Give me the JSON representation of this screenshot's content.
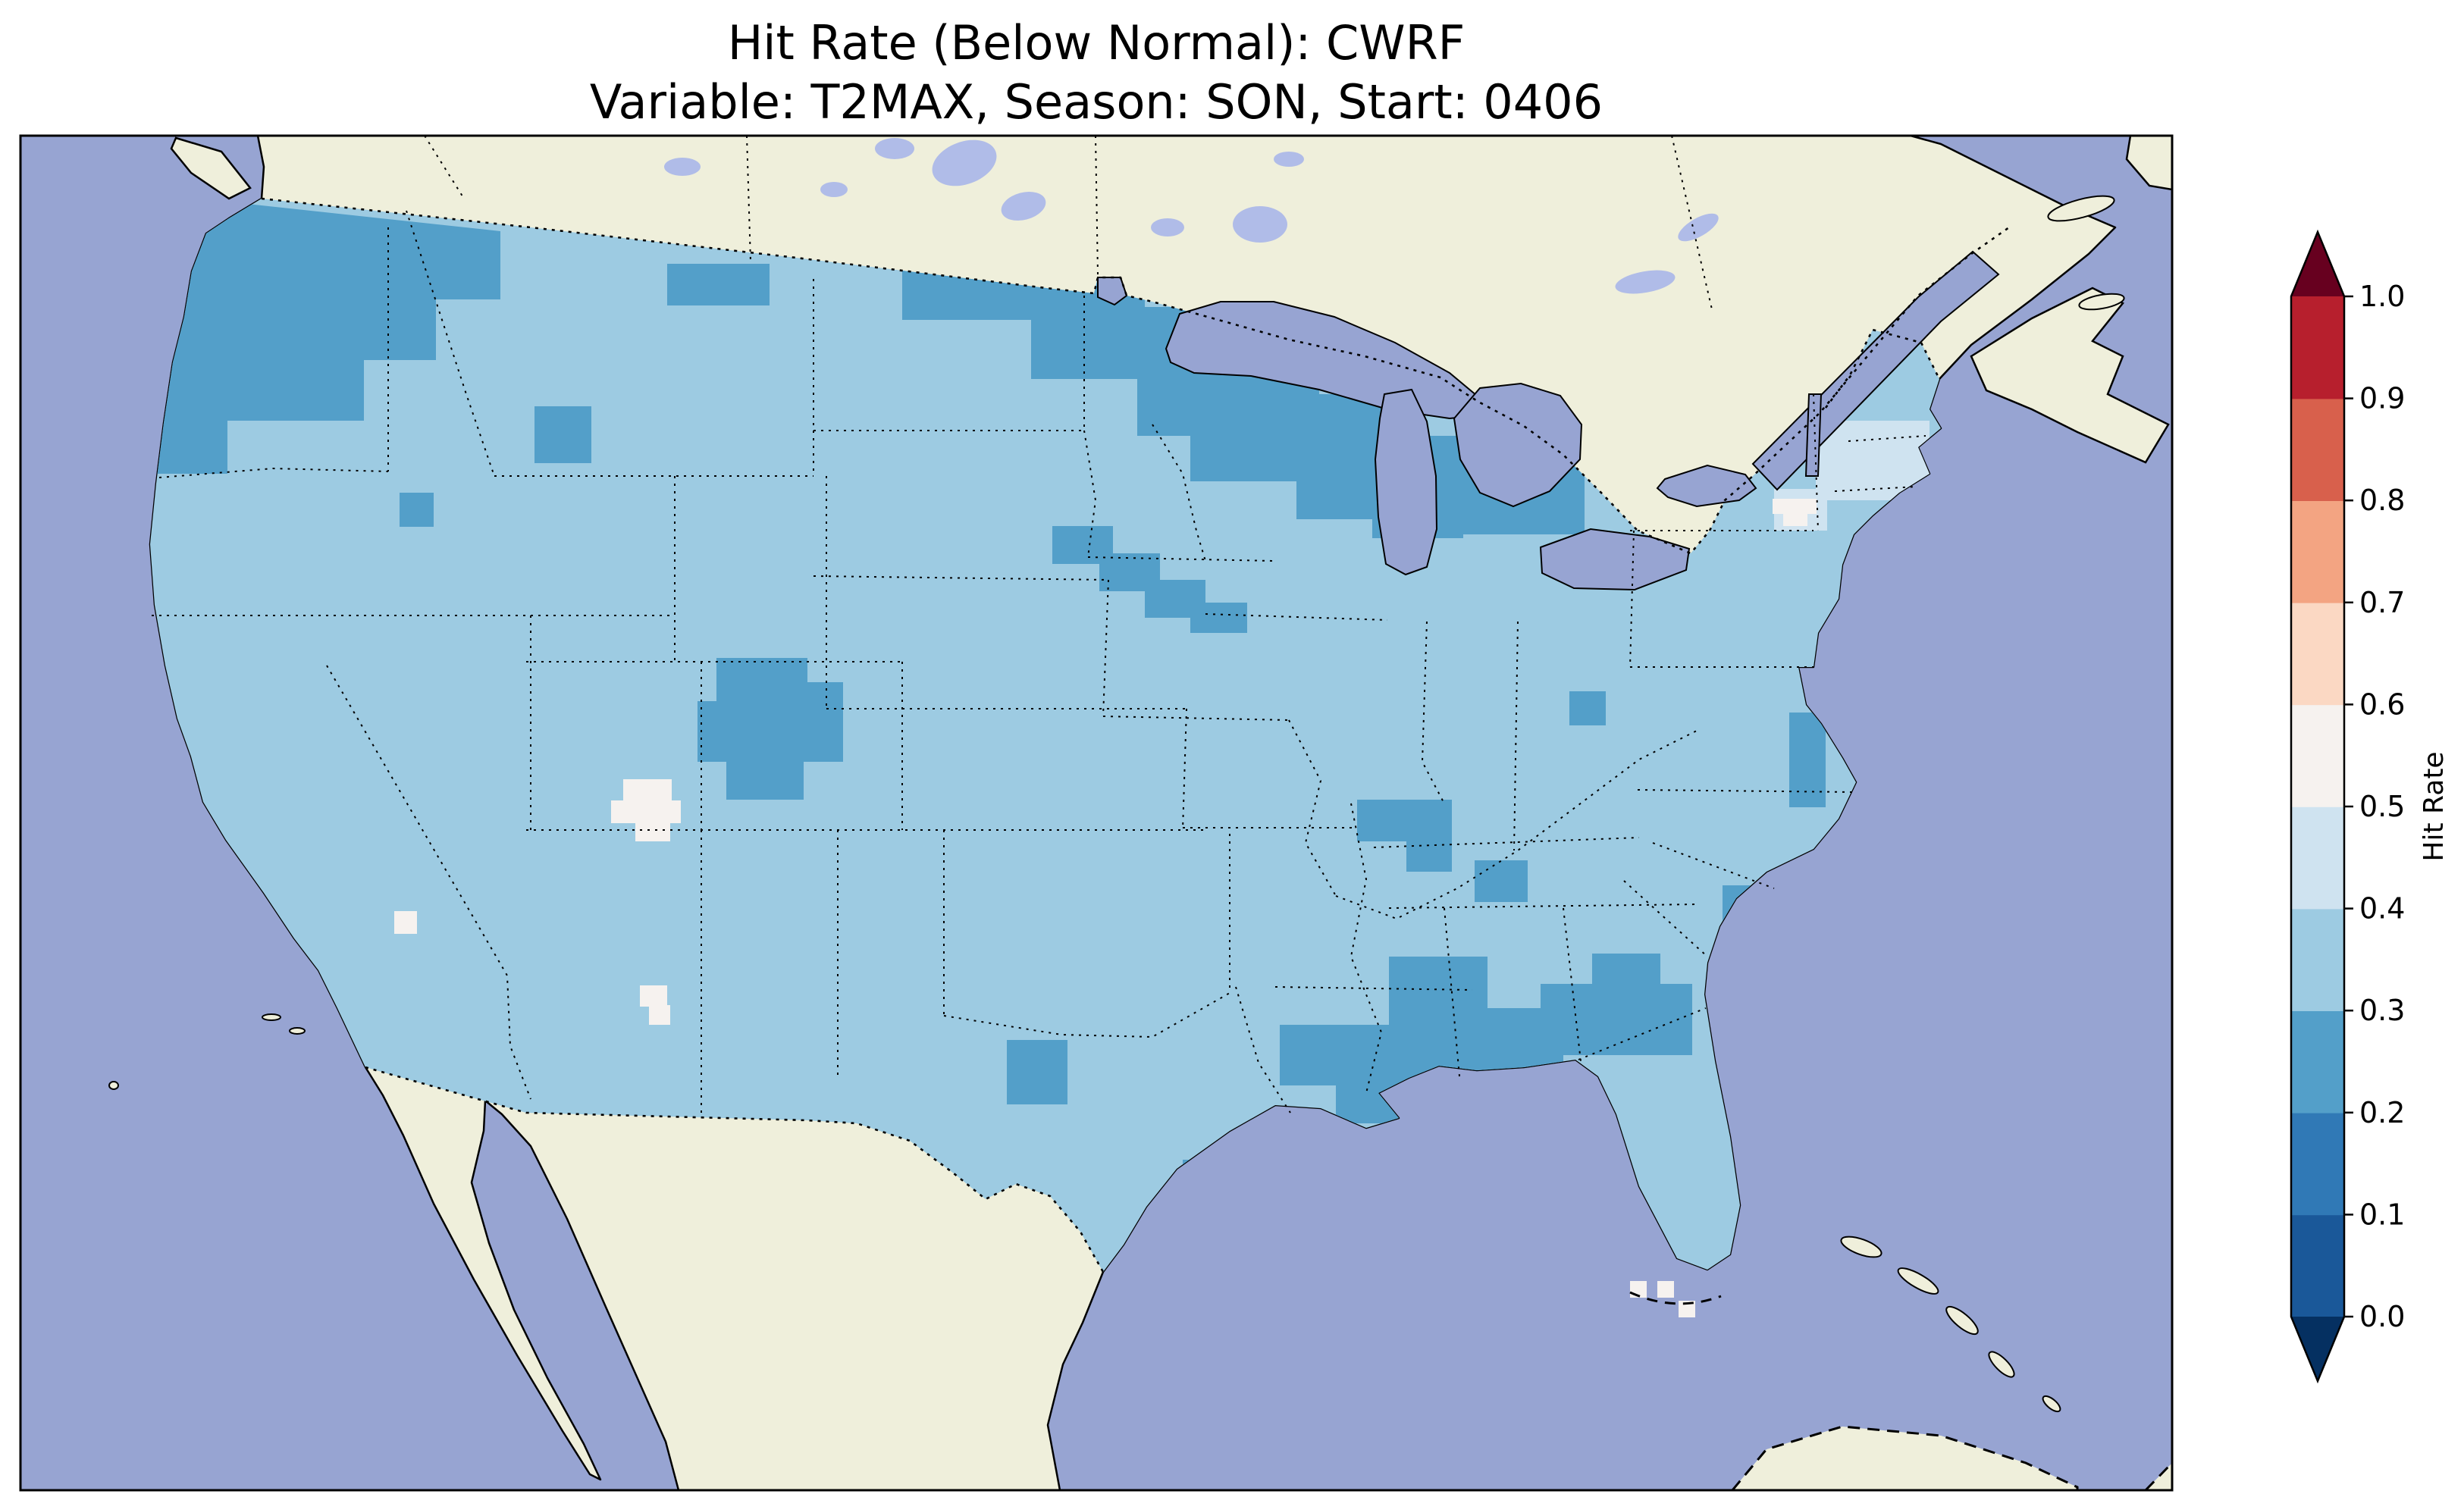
{
  "figure": {
    "title_line1": "Hit Rate (Below Normal): CWRF",
    "title_line2": "Variable: T2MAX, Season: SON, Start: 0406"
  },
  "colorbar": {
    "label": "Hit Rate",
    "ticks": [
      "0.0",
      "0.1",
      "0.2",
      "0.3",
      "0.4",
      "0.5",
      "0.6",
      "0.7",
      "0.8",
      "0.9",
      "1.0"
    ],
    "segments_bottom_to_top": [
      "#1a5899",
      "#3079b6",
      "#539fc9",
      "#9dcbe2",
      "#cfe3f0",
      "#f6f2ef",
      "#fbd8c3",
      "#f3a482",
      "#d8604c",
      "#b71f2d"
    ],
    "under_arrow_color": "#053061",
    "over_arrow_color": "#67001f",
    "outline_color": "#000000"
  },
  "map_colors": {
    "ocean": "#97a4d2",
    "land": "#efefdb",
    "lake": "#97a4d2",
    "lake_light": "#b0bce8",
    "cell_base": "#9dcbe2",
    "cell_dark": "#539fc9",
    "cell_light": "#cfe3f0",
    "cell_white": "#f6f2ef",
    "coast": "#000000",
    "border": "#000000"
  },
  "chart_data": {
    "type": "heatmap",
    "title": "Hit Rate (Below Normal): CWRF",
    "subtitle": "Variable: T2MAX, Season: SON, Start: 0406",
    "model": "CWRF",
    "metric": "Hit Rate (Below Normal)",
    "variable": "T2MAX",
    "season": "SON",
    "start": "0406",
    "region": "Contiguous United States (gridded map, cartopy-style; Canada/Mexico masked as land, oceans and Great Lakes unfilled)",
    "colorbar_label": "Hit Rate",
    "value_range": [
      0.0,
      1.0
    ],
    "colorbar_ticks": [
      0.0,
      0.1,
      0.2,
      0.3,
      0.4,
      0.5,
      0.6,
      0.7,
      0.8,
      0.9,
      1.0
    ],
    "bin_size": 0.1,
    "palette": "RdBu_r discrete (blue = low, red = high), 10 bins plus pointed under/over arrows on the colorbar",
    "data_bins": {
      "0.0-0.1": "#1a5899",
      "0.1-0.2": "#3079b6",
      "0.2-0.3": "#539fc9",
      "0.3-0.4": "#9dcbe2",
      "0.4-0.5": "#cfe3f0",
      "0.5-0.6": "#f6f2ef",
      "0.6-0.7": "#fbd8c3",
      "0.7-0.8": "#f3a482",
      "0.8-0.9": "#d8604c",
      "0.9-1.0": "#b71f2d"
    },
    "observed_values_summary": "All grid cells over CONUS fall between 0.2 and 0.6; no warm (red) values appear anywhere on the map. The dominant field value is 0.3-0.4.",
    "regions": [
      {
        "area": "Most of CONUS (base field)",
        "hit_rate": "0.3-0.4"
      },
      {
        "area": "Pacific Northwest: Washington, N Oregon, N Idaho",
        "hit_rate": "0.2-0.3"
      },
      {
        "area": "Northern border band: N Montana, N North Dakota, N Minnesota, N Wisconsin, Upper Michigan, N lower Michigan",
        "hit_rate": "0.2-0.3"
      },
      {
        "area": "SE Minnesota / SW Wisconsin diagonal streak",
        "hit_rate": "0.2-0.3"
      },
      {
        "area": "Eastern Colorado / W Kansas patch",
        "hit_rate": "0.2-0.3"
      },
      {
        "area": "Middle Tennessee patch and nearby cells",
        "hit_rate": "0.2-0.3"
      },
      {
        "area": "Louisiana - Mississippi - Alabama - Georgia band",
        "hit_rate": "0.2-0.3"
      },
      {
        "area": "Chesapeake Bay shoreline cells",
        "hit_rate": "0.2-0.3"
      },
      {
        "area": "Central Texas patch and one Texas coast cell",
        "hit_rate": "0.2-0.3"
      },
      {
        "area": "Coastal Carolinas cell",
        "hit_rate": "0.2-0.3"
      },
      {
        "area": "New England / Northeast",
        "hit_rate": "0.4-0.5"
      },
      {
        "area": "Central Utah cell cluster",
        "hit_rate": "0.5-0.6 (near-white)"
      },
      {
        "area": "Upstate New York cells",
        "hit_rate": "0.5-0.6 (near-white)"
      },
      {
        "area": "N New Mexico cells, CA/NV border cell, S Florida tip cells",
        "hit_rate": "0.5-0.6 (near-white)"
      }
    ],
    "legend_position": "right vertical colorbar with triangular extend arrows at both ends",
    "grid": false
  }
}
